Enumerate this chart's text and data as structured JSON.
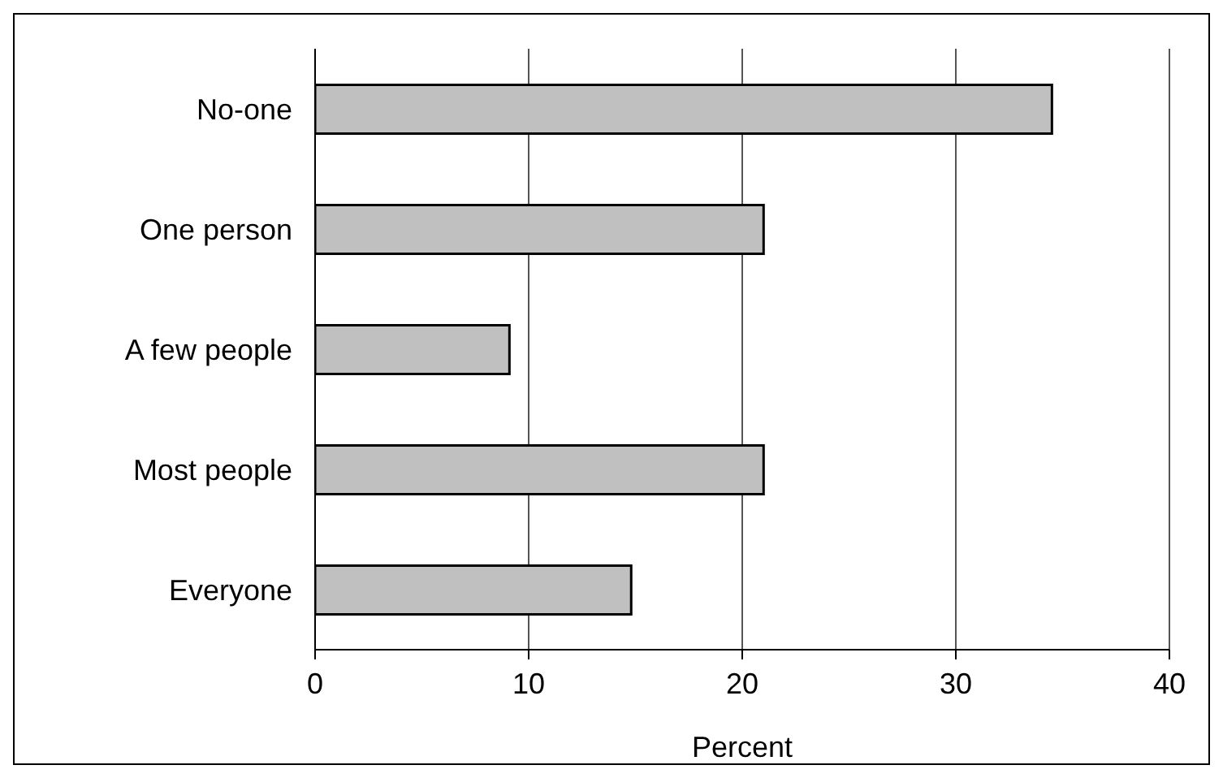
{
  "chart_data": {
    "type": "bar",
    "orientation": "horizontal",
    "categories": [
      "No-one",
      "One person",
      "A few people",
      "Most  people",
      "Everyone"
    ],
    "values": [
      34.5,
      21,
      9.1,
      21,
      14.8
    ],
    "color": "#c0c0c0",
    "xlabel": "Percent",
    "xlim": [
      0,
      40
    ],
    "xticks": [
      0,
      10,
      20,
      30,
      40
    ],
    "grid": "x"
  }
}
